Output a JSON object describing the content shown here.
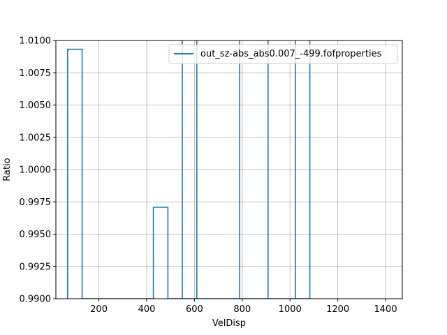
{
  "chart_data": {
    "type": "line",
    "title": "",
    "xlabel": "VelDisp",
    "ylabel": "Ratio",
    "xlim": [
      20,
      1470
    ],
    "ylim": [
      0.99,
      1.01
    ],
    "xticks": [
      200,
      400,
      600,
      800,
      1000,
      1200,
      1400
    ],
    "xtick_labels": [
      "200",
      "400",
      "600",
      "800",
      "1000",
      "1200",
      "1400"
    ],
    "yticks": [
      0.99,
      0.9925,
      0.995,
      0.9975,
      1.0,
      1.0025,
      1.005,
      1.0075,
      1.01
    ],
    "ytick_labels": [
      "0.9900",
      "0.9925",
      "0.9950",
      "0.9975",
      "1.0000",
      "1.0025",
      "1.0050",
      "1.0075",
      "1.0100"
    ],
    "grid": true,
    "legend": "top-right",
    "series": [
      {
        "name": "out_sz-abs_abs0.007_-499.fofproperties",
        "color": "#1f77b4",
        "x": [
          69,
          69,
          130,
          130,
          428,
          428,
          489,
          489,
          549,
          549,
          549,
          610,
          610,
          610,
          789,
          789,
          789,
          908,
          908,
          908,
          1023,
          1023,
          1023,
          1083,
          1083
        ],
        "y": [
          0.99,
          1.00932,
          1.00932,
          0.99,
          0.99,
          0.99708,
          0.99708,
          0.99,
          0.99,
          1.012,
          0.99,
          0.99,
          1.012,
          0.99,
          0.99,
          1.012,
          0.99,
          0.99,
          1.012,
          0.99,
          0.99,
          1.012,
          0.99,
          0.99,
          1.012
        ]
      }
    ]
  }
}
